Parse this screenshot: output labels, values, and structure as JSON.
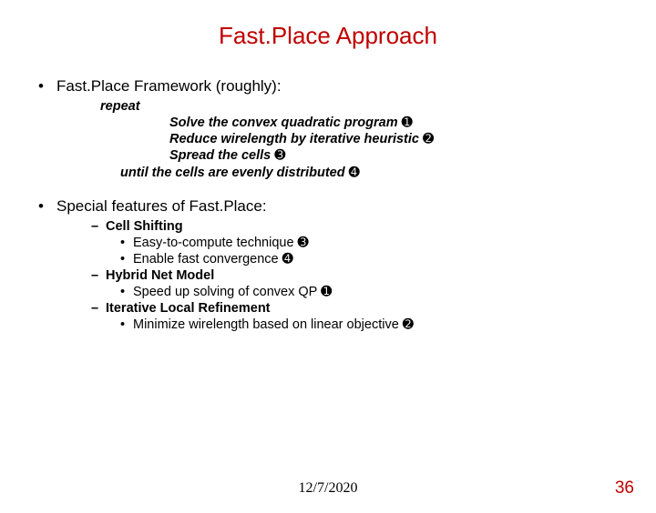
{
  "title": "Fast.Place Approach",
  "section1": {
    "heading": "Fast.Place Framework (roughly):",
    "repeat": "repeat",
    "step1": "Solve the convex quadratic program  ",
    "step1_num": "➊",
    "step2": "Reduce wirelength by iterative heuristic ",
    "step2_num": "➋",
    "step3": "Spread the cells  ",
    "step3_num": "➌",
    "until": "until the cells are evenly distributed  ",
    "until_num": "➍"
  },
  "section2": {
    "heading": "Special features of Fast.Place:",
    "f1": "Cell Shifting",
    "f1a": "Easy-to-compute technique  ",
    "f1a_num": "➌",
    "f1b": "Enable fast convergence  ",
    "f1b_num": "➍",
    "f2": "Hybrid Net Model",
    "f2a": "Speed up solving of convex QP  ",
    "f2a_num": "➊",
    "f3": "Iterative Local Refinement",
    "f3a": "Minimize wirelength based on linear objective  ",
    "f3a_num": "➋"
  },
  "footer": {
    "date": "12/7/2020",
    "page": "36"
  },
  "colors": {
    "title": "#c00000",
    "text": "#000000",
    "page": "#c00000",
    "background": "#ffffff"
  }
}
